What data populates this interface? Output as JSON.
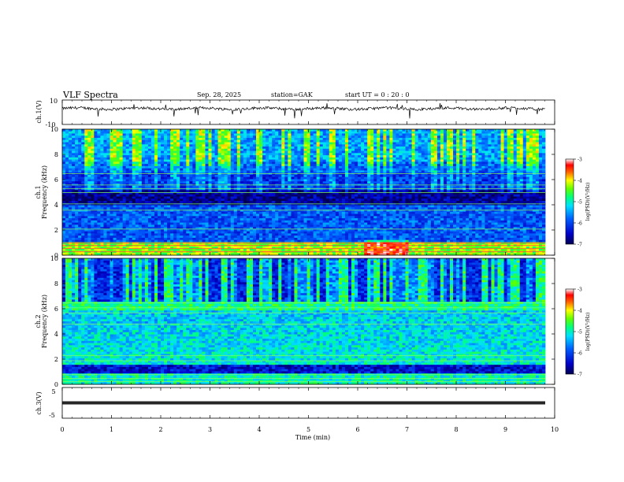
{
  "header": {
    "title": "VLF  Spectra",
    "date": "Sep. 28, 2025",
    "station": "station=GAK",
    "start_ut": "start  UT =   0  : 20 : 0"
  },
  "chart_data": [
    {
      "type": "line",
      "name": "ch1-waveform",
      "ylabel": "ch.1(V)",
      "ylim": [
        -10,
        10
      ],
      "yticks": [
        "10",
        "-10"
      ],
      "xlim": [
        0,
        10
      ],
      "note": "dense noisy trace near +3 V, x 0 to 9.8 min"
    },
    {
      "type": "heatmap",
      "name": "ch1-spectrogram",
      "ylabel_top": "ch.1",
      "ylabel": "Frequency  (kHz)",
      "ylim": [
        0,
        10
      ],
      "yticks": [
        "0",
        "2",
        "4",
        "6",
        "8",
        "10"
      ],
      "xlim": [
        0,
        10
      ],
      "colorbar": {
        "label": "log(PSD)(V²/Hz)",
        "range": [
          -7,
          -3
        ],
        "ticks": [
          "-3",
          "-4",
          "-5",
          "-6",
          "-7"
        ]
      }
    },
    {
      "type": "heatmap",
      "name": "ch2-spectrogram",
      "ylabel_top": "ch.2",
      "ylabel": "Frequency  (kHz)",
      "ylim": [
        0,
        10
      ],
      "yticks": [
        "0",
        "2",
        "4",
        "6",
        "8",
        "10"
      ],
      "xlim": [
        0,
        10
      ],
      "colorbar": {
        "label": "log(PSD)(V²/Hz)",
        "range": [
          -7,
          -3
        ],
        "ticks": [
          "-3",
          "-4",
          "-5",
          "-6",
          "-7"
        ]
      }
    },
    {
      "type": "line",
      "name": "ch3-waveform",
      "ylabel": "ch.3(V)",
      "ylim": [
        -5,
        5
      ],
      "yticks": [
        "5",
        "-5"
      ],
      "xlim": [
        0,
        10
      ],
      "note": "dense trace near -1.5 V"
    }
  ],
  "x_axis": {
    "label": "Time  (min)",
    "ticks": [
      "0",
      "1",
      "2",
      "3",
      "4",
      "5",
      "6",
      "7",
      "8",
      "9",
      "10"
    ]
  },
  "colors": {
    "colormap": [
      "#00007a",
      "#0000ff",
      "#00a0ff",
      "#00ffa0",
      "#40ff00",
      "#ffff00",
      "#ff8000",
      "#ff0000",
      "#ffffff"
    ]
  }
}
